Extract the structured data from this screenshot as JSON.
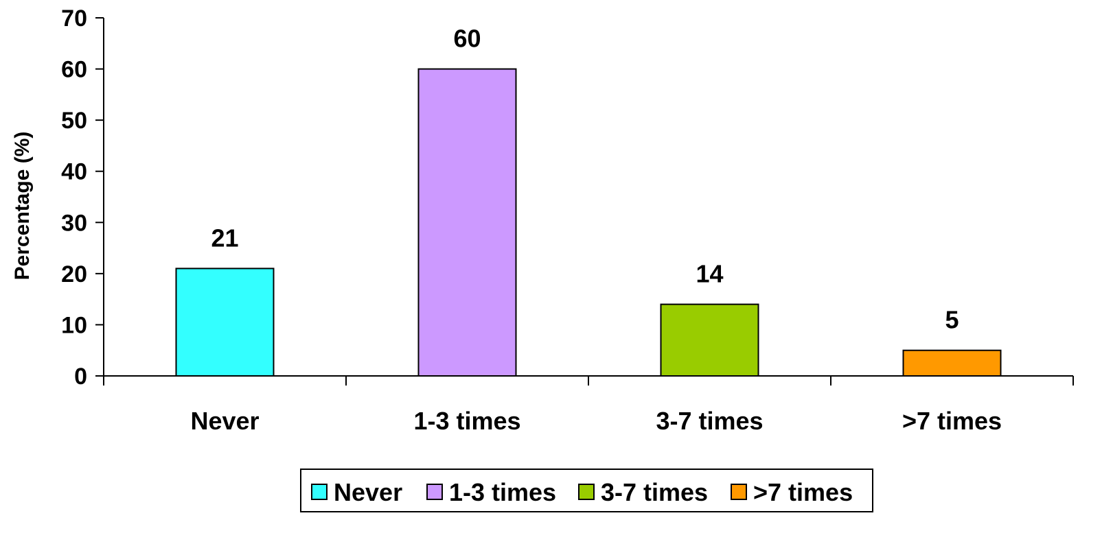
{
  "chart_data": {
    "type": "bar",
    "title": "",
    "xlabel": "",
    "ylabel": "Percentage (%)",
    "ylim": [
      0,
      70
    ],
    "yticks": [
      0,
      10,
      20,
      30,
      40,
      50,
      60,
      70
    ],
    "categories": [
      "Never",
      "1-3 times",
      "3-7 times",
      ">7 times"
    ],
    "values": [
      21,
      60,
      14,
      5
    ],
    "data_labels": [
      "21",
      "60",
      "14",
      "5"
    ],
    "colors": [
      "#33FFFF",
      "#CC99FF",
      "#99CC00",
      "#FF9900"
    ],
    "legend": {
      "position": "bottom",
      "entries": [
        "Never",
        "1-3 times",
        "3-7 times",
        ">7 times"
      ]
    },
    "grid": false
  }
}
